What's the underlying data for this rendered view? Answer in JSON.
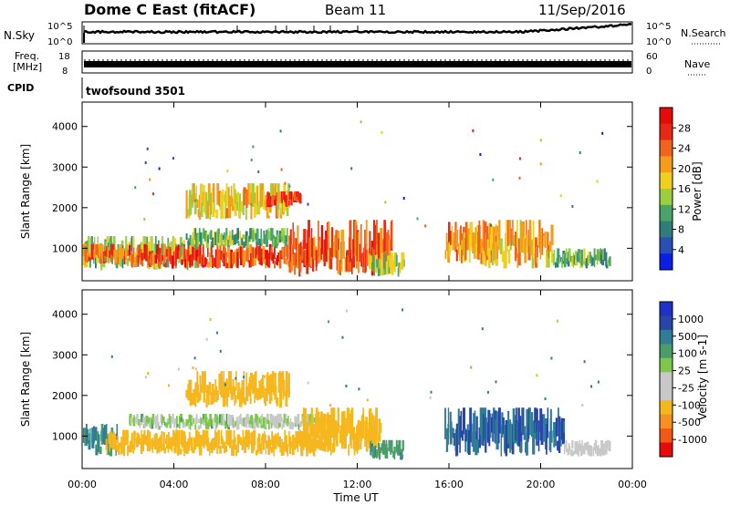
{
  "header": {
    "station": "Dome C East (fitACF)",
    "beam": "Beam 11",
    "date": "11/Sep/2016"
  },
  "strips": {
    "nsky": {
      "label": "N.Sky",
      "ticks": [
        "10^5",
        "10^0"
      ]
    },
    "nsearch": {
      "label": "N.Search",
      "ticks": [
        "10^5",
        "10^0"
      ]
    },
    "freq": {
      "label_line1": "Freq.",
      "label_line2": "[MHz]",
      "ticks": [
        "18",
        "8"
      ]
    },
    "nave": {
      "label": "Nave",
      "ticks": [
        "60",
        "0"
      ]
    },
    "cpid": {
      "label": "CPID",
      "program": "twofsound 3501"
    }
  },
  "colors": {
    "power_scale": [
      "#0a1ee6",
      "#2a4fb4",
      "#2f7d7a",
      "#4aa46a",
      "#9ccf3f",
      "#f0cf1e",
      "#f59c1a",
      "#f0641e",
      "#e62814",
      "#e60a0a"
    ],
    "velocity_scale": [
      "#e60a0a",
      "#f05a14",
      "#f59023",
      "#f5b61e",
      "#c8c8c8",
      "#c8c8c8",
      "#7dc84b",
      "#4a9c6a",
      "#2f7d96",
      "#2846aa",
      "#1e32c8"
    ]
  },
  "chart_data": [
    {
      "type": "heatmap",
      "name": "power",
      "ylabel": "Slant Range [km]",
      "xlabel": "Time UT",
      "x_ticks": [
        "00:00",
        "04:00",
        "08:00",
        "12:00",
        "16:00",
        "20:00",
        "00:00"
      ],
      "x_range_hours": [
        0,
        24
      ],
      "y_ticks": [
        "1000",
        "2000",
        "3000",
        "4000"
      ],
      "ylim": [
        200,
        4600
      ],
      "colorbar": {
        "label": "Power [dB]",
        "ticks": [
          "4",
          "8",
          "12",
          "16",
          "20",
          "24",
          "28"
        ],
        "range": [
          0,
          32
        ]
      },
      "regions": [
        {
          "t0": 0.0,
          "t1": 5.0,
          "r0": 450,
          "r1": 1300,
          "value": 14
        },
        {
          "t0": 0.0,
          "t1": 2.0,
          "r0": 600,
          "r1": 1100,
          "value": 24
        },
        {
          "t0": 2.0,
          "t1": 10.0,
          "r0": 500,
          "r1": 1100,
          "value": 26
        },
        {
          "t0": 4.5,
          "t1": 9.0,
          "r0": 1000,
          "r1": 1500,
          "value": 12
        },
        {
          "t0": 4.5,
          "t1": 9.0,
          "r0": 1700,
          "r1": 2600,
          "value": 18
        },
        {
          "t0": 8.0,
          "t1": 9.5,
          "r0": 2000,
          "r1": 2400,
          "value": 26
        },
        {
          "t0": 9.0,
          "t1": 13.5,
          "r0": 300,
          "r1": 1700,
          "value": 25
        },
        {
          "t0": 12.5,
          "t1": 14.0,
          "r0": 300,
          "r1": 900,
          "value": 14
        },
        {
          "t0": 15.8,
          "t1": 18.2,
          "r0": 600,
          "r1": 1650,
          "value": 22
        },
        {
          "t0": 17.0,
          "t1": 20.5,
          "r0": 500,
          "r1": 1700,
          "value": 20
        },
        {
          "t0": 20.5,
          "t1": 23.0,
          "r0": 500,
          "r1": 1000,
          "value": 12
        }
      ]
    },
    {
      "type": "heatmap",
      "name": "velocity",
      "ylabel": "Slant Range [km]",
      "xlabel": "Time UT",
      "x_ticks": [
        "00:00",
        "04:00",
        "08:00",
        "12:00",
        "16:00",
        "20:00",
        "00:00"
      ],
      "x_range_hours": [
        0,
        24
      ],
      "y_ticks": [
        "1000",
        "2000",
        "3000",
        "4000"
      ],
      "ylim": [
        200,
        4600
      ],
      "colorbar": {
        "label": "Velocity [m s-1]",
        "ticks": [
          "1000",
          "500",
          "100",
          "25",
          "-25",
          "-100",
          "-500",
          "-1000"
        ]
      },
      "regions": [
        {
          "t0": 0.0,
          "t1": 1.5,
          "r0": 500,
          "r1": 1300,
          "value": 100
        },
        {
          "t0": 1.0,
          "t1": 11.0,
          "r0": 500,
          "r1": 1150,
          "value": -350
        },
        {
          "t0": 2.0,
          "t1": 11.0,
          "r0": 1150,
          "r1": 1550,
          "value": 0
        },
        {
          "t0": 4.5,
          "t1": 9.0,
          "r0": 1700,
          "r1": 2600,
          "value": -250
        },
        {
          "t0": 9.5,
          "t1": 13.0,
          "r0": 500,
          "r1": 1700,
          "value": -300
        },
        {
          "t0": 12.5,
          "t1": 14.0,
          "r0": 400,
          "r1": 900,
          "value": 80
        },
        {
          "t0": 15.8,
          "t1": 21.0,
          "r0": 500,
          "r1": 1700,
          "value": 500
        },
        {
          "t0": 21.0,
          "t1": 23.0,
          "r0": 500,
          "r1": 900,
          "value": -60
        }
      ]
    }
  ]
}
